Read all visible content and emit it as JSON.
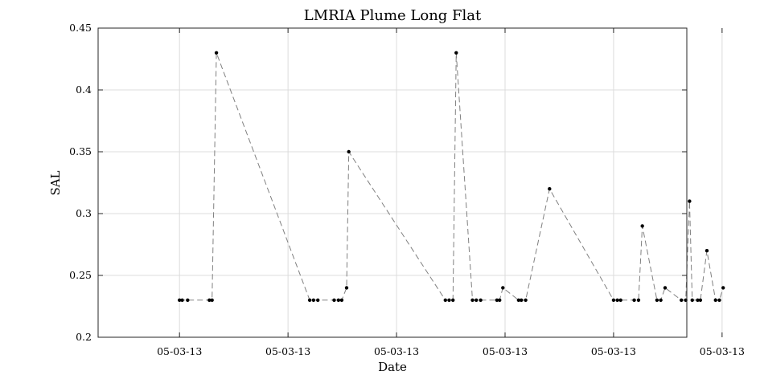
{
  "chart_data": {
    "type": "line",
    "title": "LMRIA Plume Long Flat",
    "xlabel": "Date",
    "ylabel": "SAL",
    "ylim": [
      0.2,
      0.45
    ],
    "yticks": [
      "0.2",
      "0.25",
      "0.3",
      "0.35",
      "0.4",
      "0.45"
    ],
    "xlim": [
      -1.5,
      9.35
    ],
    "xticks": [
      0,
      2,
      4,
      6,
      8,
      10
    ],
    "xtick_labels": [
      "05-03-13",
      "05-03-13",
      "05-03-13",
      "05-03-13",
      "05-03-13",
      "05-03-13"
    ],
    "grid": true,
    "line_style": "dashed",
    "line_color": "#808080",
    "marker_color": "#000000",
    "series": [
      {
        "x": [
          0.0,
          0.05,
          0.15,
          0.55,
          0.6,
          0.68,
          2.4,
          2.47,
          2.55,
          2.85,
          2.93,
          2.99,
          3.08,
          3.12,
          4.9,
          4.97,
          5.04,
          5.1,
          5.4,
          5.47,
          5.55,
          5.85,
          5.9,
          5.96,
          6.25,
          6.3,
          6.38,
          6.82,
          8.0,
          8.07,
          8.13,
          8.38,
          8.46,
          8.53,
          8.8,
          8.87,
          8.95,
          9.25,
          9.33,
          9.4,
          9.45,
          9.55,
          9.6,
          9.72,
          9.88,
          9.95,
          10.02
        ],
        "y": [
          0.23,
          0.23,
          0.23,
          0.23,
          0.23,
          0.43,
          0.23,
          0.23,
          0.23,
          0.23,
          0.23,
          0.23,
          0.24,
          0.35,
          0.23,
          0.23,
          0.23,
          0.43,
          0.23,
          0.23,
          0.23,
          0.23,
          0.23,
          0.24,
          0.23,
          0.23,
          0.23,
          0.32,
          0.23,
          0.23,
          0.23,
          0.23,
          0.23,
          0.29,
          0.23,
          0.23,
          0.24,
          0.23,
          0.23,
          0.31,
          0.23,
          0.23,
          0.23,
          0.27,
          0.23,
          0.23,
          0.24
        ]
      }
    ]
  }
}
